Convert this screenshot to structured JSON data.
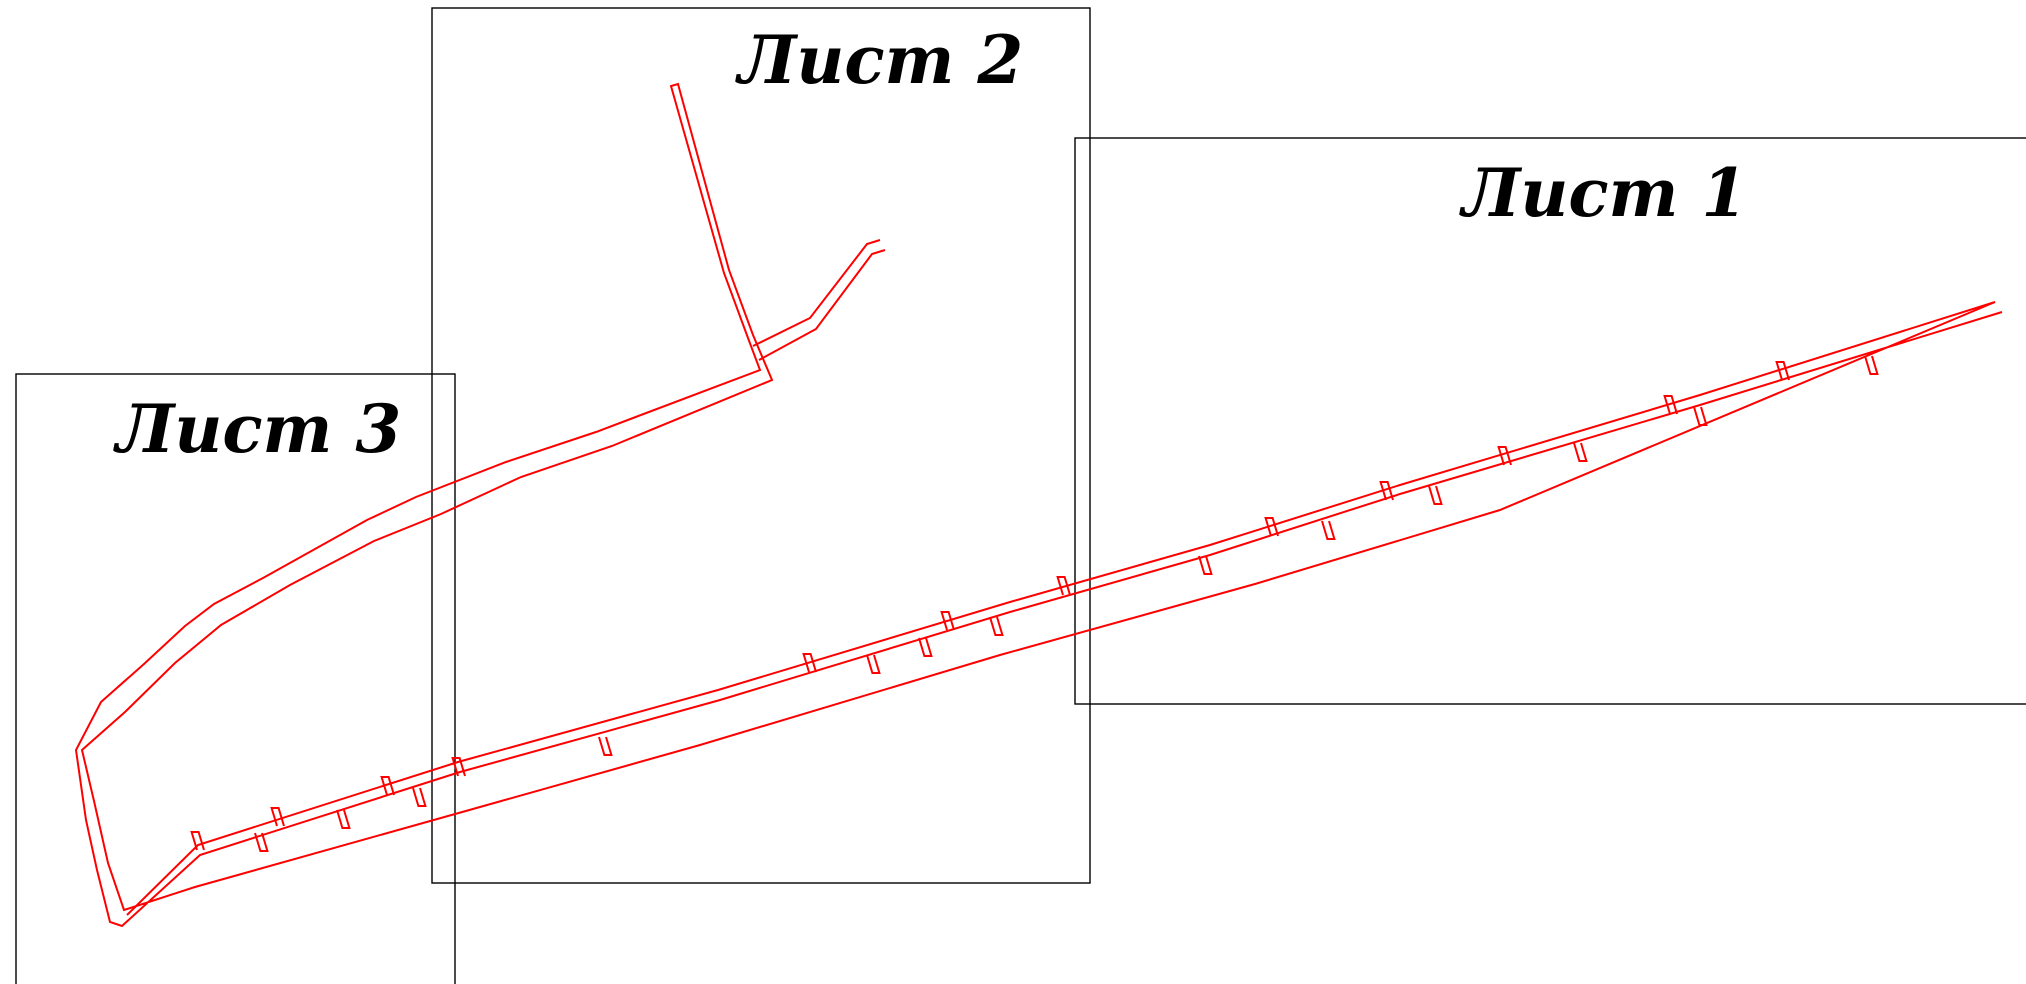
{
  "sheets": [
    {
      "label": "Лист 1"
    },
    {
      "label": "Лист 2"
    },
    {
      "label": "Лист 3"
    }
  ],
  "colors": {
    "route": "#ff0000",
    "frame": "#000000",
    "background": "#ffffff"
  }
}
